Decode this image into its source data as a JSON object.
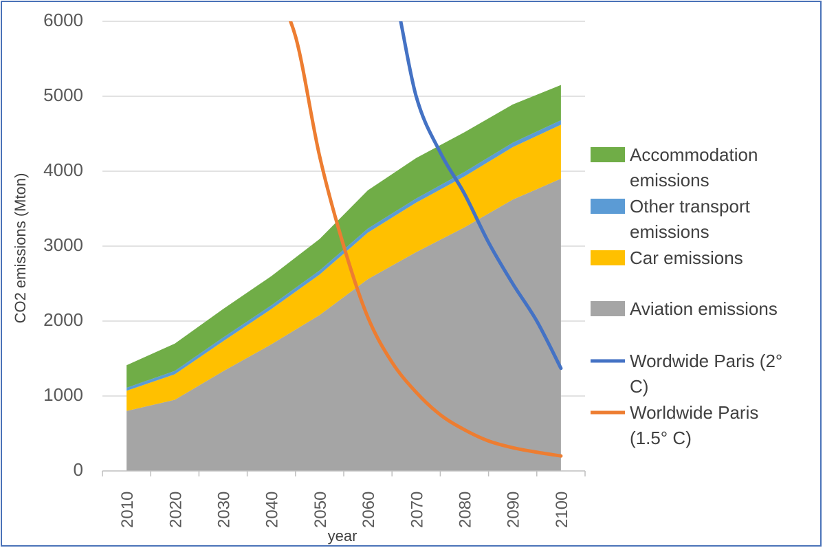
{
  "chart_data": {
    "type": "area",
    "xlabel": "year",
    "ylabel": "CO2 emissions (Mton)",
    "ylim": [
      0,
      6000
    ],
    "y_ticks": [
      0,
      1000,
      2000,
      3000,
      4000,
      5000,
      6000
    ],
    "x_ticks": [
      2010,
      2020,
      2030,
      2040,
      2050,
      2060,
      2070,
      2080,
      2090,
      2100
    ],
    "grid": "horizontal",
    "legend_position": "right",
    "stacked_areas": [
      {
        "name": "Aviation emissions",
        "color": "#a5a5a5",
        "values": [
          800,
          950,
          1330,
          1690,
          2080,
          2560,
          2920,
          3250,
          3620,
          3900
        ]
      },
      {
        "name": "Car emissions",
        "color": "#ffc000",
        "values": [
          270,
          340,
          400,
          470,
          540,
          620,
          660,
          680,
          700,
          720
        ]
      },
      {
        "name": "Other transport emissions",
        "color": "#5b9bd5",
        "values": [
          40,
          45,
          50,
          50,
          55,
          55,
          55,
          60,
          60,
          60
        ]
      },
      {
        "name": "Accommodation emissions",
        "color": "#70ad47",
        "values": [
          300,
          365,
          380,
          390,
          420,
          510,
          540,
          530,
          510,
          470
        ]
      }
    ],
    "lines": [
      {
        "name": "Wordwide Paris (2° C)",
        "color": "#4472c4",
        "points": [
          [
            2060,
            7000
          ],
          [
            2065,
            6500
          ],
          [
            2070,
            5000
          ],
          [
            2075,
            4250
          ],
          [
            2080,
            3700
          ],
          [
            2085,
            3050
          ],
          [
            2090,
            2500
          ],
          [
            2095,
            2000
          ],
          [
            2100,
            1600
          ],
          [
            2105,
            1380
          ]
        ]
      },
      {
        "name": "Worldwide Paris (1.5° C)",
        "color": "#ed7d31",
        "points": [
          [
            2040,
            6500
          ],
          [
            2045,
            5800
          ],
          [
            2050,
            4200
          ],
          [
            2055,
            3000
          ],
          [
            2060,
            2050
          ],
          [
            2065,
            1450
          ],
          [
            2070,
            1050
          ],
          [
            2075,
            750
          ],
          [
            2080,
            550
          ],
          [
            2085,
            400
          ],
          [
            2090,
            310
          ],
          [
            2095,
            250
          ],
          [
            2100,
            210
          ],
          [
            2105,
            190
          ]
        ]
      }
    ],
    "legend": [
      {
        "label": "Accommodation emissions",
        "kind": "area",
        "color": "#70ad47"
      },
      {
        "label": "Other transport emissions",
        "kind": "area",
        "color": "#5b9bd5"
      },
      {
        "label": "Car emissions",
        "kind": "area",
        "color": "#ffc000"
      },
      {
        "label": "Aviation emissions",
        "kind": "area",
        "color": "#a5a5a5"
      },
      {
        "label": "Wordwide Paris (2° C)",
        "kind": "line",
        "color": "#4472c4"
      },
      {
        "label": "Worldwide Paris (1.5° C)",
        "kind": "line",
        "color": "#ed7d31"
      }
    ]
  }
}
